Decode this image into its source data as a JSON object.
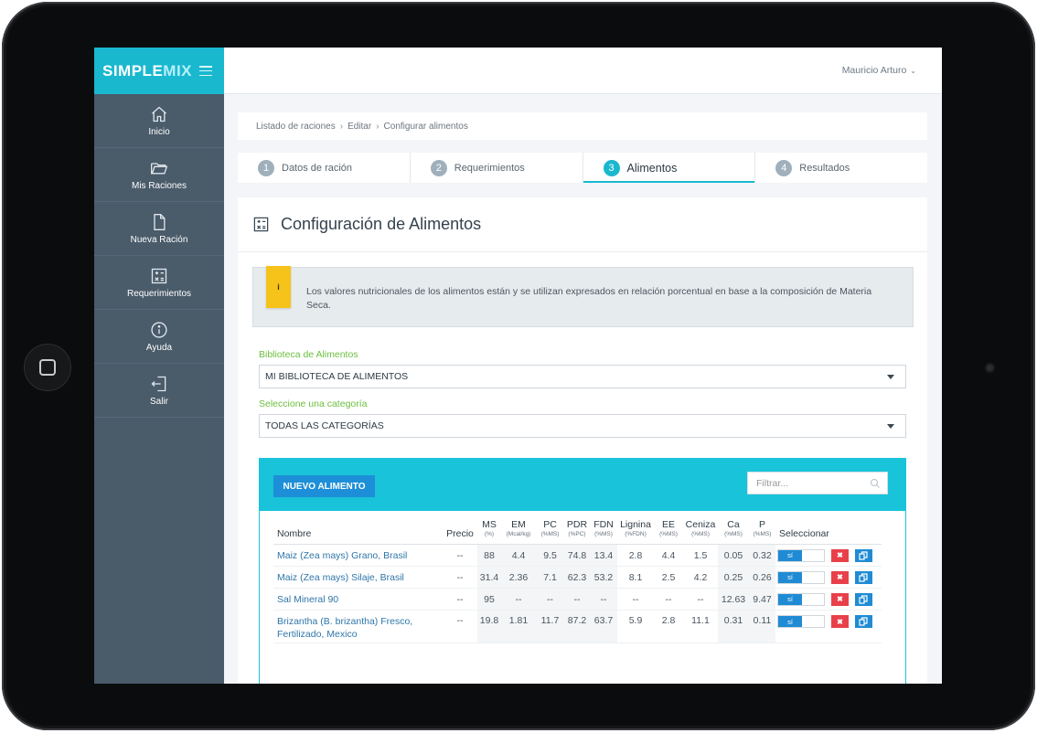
{
  "app": {
    "brand_a": "SIMPLE",
    "brand_b": "MIX"
  },
  "sidebar": {
    "items": [
      {
        "label": "Inicio",
        "icon": "home-icon"
      },
      {
        "label": "Mis Raciones",
        "icon": "folder-icon"
      },
      {
        "label": "Nueva Ración",
        "icon": "document-icon"
      },
      {
        "label": "Requerimientos",
        "icon": "calculator-icon"
      },
      {
        "label": "Ayuda",
        "icon": "info-icon"
      },
      {
        "label": "Salir",
        "icon": "logout-icon"
      }
    ]
  },
  "topbar": {
    "user": "Mauricio Arturo"
  },
  "breadcrumb": [
    "Listado de raciones",
    "Editar",
    "Configurar alimentos"
  ],
  "steps": [
    {
      "num": "1",
      "label": "Datos de ración"
    },
    {
      "num": "2",
      "label": "Requerimientos"
    },
    {
      "num": "3",
      "label": "Alimentos",
      "active": true
    },
    {
      "num": "4",
      "label": "Resultados"
    }
  ],
  "card": {
    "title": "Configuración de Alimentos",
    "alert_badge": "i",
    "alert_text": "Los valores nutricionales de los alimentos están y se utilizan expresados en relación porcentual en base a la composición de Materia Seca.",
    "library_label": "Biblioteca de Alimentos",
    "library_value": "MI BIBLIOTECA DE ALIMENTOS",
    "category_label": "Seleccione una categoría",
    "category_value": "TODAS LAS CATEGORÍAS"
  },
  "panel": {
    "new_button": "NUEVO ALIMENTO",
    "filter_placeholder": "Filtrar..."
  },
  "table": {
    "headers": {
      "nombre": "Nombre",
      "precio": "Precio",
      "ms": "MS",
      "ms_u": "(%)",
      "em": "EM",
      "em_u": "(Mcal/kg)",
      "pc": "PC",
      "pc_u": "(%MS)",
      "pdr": "PDR",
      "pdr_u": "(%PC)",
      "fdn": "FDN",
      "fdn_u": "(%MS)",
      "lig": "Lignina",
      "lig_u": "(%FDN)",
      "ee": "EE",
      "ee_u": "(%MS)",
      "cen": "Ceniza",
      "cen_u": "(%MS)",
      "ca": "Ca",
      "ca_u": "(%MS)",
      "p": "P",
      "p_u": "(%MS)",
      "sel": "Seleccionar"
    },
    "toggle_label": "sí",
    "delete_label": "✖",
    "rows": [
      {
        "name": "Maiz (Zea mays) Grano, Brasil",
        "precio": "--",
        "ms": "88",
        "em": "4.4",
        "pc": "9.5",
        "pdr": "74.8",
        "fdn": "13.4",
        "lig": "2.8",
        "ee": "4.4",
        "cen": "1.5",
        "ca": "0.05",
        "p": "0.32"
      },
      {
        "name": "Maiz (Zea mays) Silaje, Brasil",
        "precio": "--",
        "ms": "31.4",
        "em": "2.36",
        "pc": "7.1",
        "pdr": "62.3",
        "fdn": "53.2",
        "lig": "8.1",
        "ee": "2.5",
        "cen": "4.2",
        "ca": "0.25",
        "p": "0.26"
      },
      {
        "name": "Sal Mineral 90",
        "precio": "--",
        "ms": "95",
        "em": "--",
        "pc": "--",
        "pdr": "--",
        "fdn": "--",
        "lig": "--",
        "ee": "--",
        "cen": "--",
        "ca": "12.63",
        "p": "9.47"
      },
      {
        "name_1": "Brizantha (B. brizantha) Fresco,",
        "name_2": "Fertilizado, Mexico",
        "precio": "--",
        "ms": "19.8",
        "em": "1.81",
        "pc": "11.7",
        "pdr": "87.2",
        "fdn": "63.7",
        "lig": "5.9",
        "ee": "2.8",
        "cen": "11.1",
        "ca": "0.31",
        "p": "0.11"
      }
    ]
  },
  "colors": {
    "accent": "#19b8cf",
    "sidebar": "#4a5b6a",
    "primary_button": "#1d8fd8",
    "danger": "#e8404a",
    "label_green": "#6bbf3e",
    "alert_badge": "#f6c31a"
  }
}
